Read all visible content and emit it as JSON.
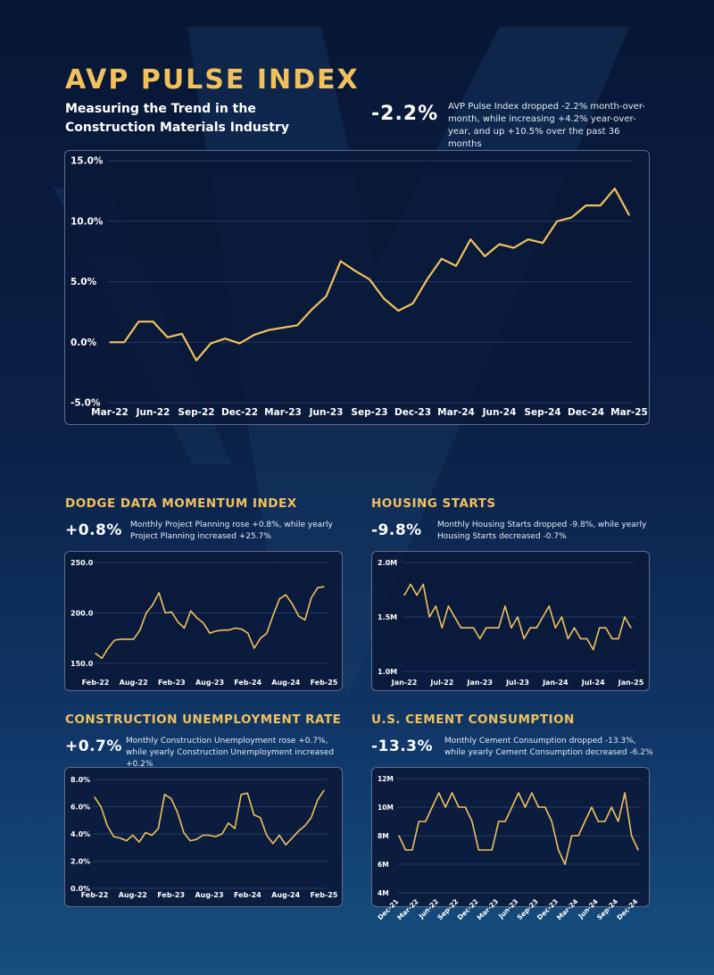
{
  "header": {
    "title": "AVP PULSE INDEX",
    "subtitle": "Measuring the Trend in the Construction Materials Industry",
    "stat": "-2.2%",
    "description": "AVP Pulse Index dropped -2.2% month-over-month, while increasing +4.2% year-over-year, and up +10.5% over the past 36 months"
  },
  "colors": {
    "line": "#f2c15c",
    "accent": "#f2c15c",
    "panel": "#0a1838",
    "text": "#ffffff"
  },
  "sections": {
    "dodge": {
      "title": "DODGE DATA MOMENTUM INDEX",
      "stat": "+0.8%",
      "description": "Monthly Project Planning rose +0.8%, while yearly Project Planning increased +25.7%"
    },
    "housing": {
      "title": "HOUSING STARTS",
      "stat": "-9.8%",
      "description": "Monthly Housing Starts dropped -9.8%, while yearly Housing Starts decreased -0.7%"
    },
    "unemployment": {
      "title": "CONSTRUCTION UNEMPLOYMENT RATE",
      "stat": "+0.7%",
      "description": "Monthly Construction Unemployment rose +0.7%, while yearly Construction Unemployment increased +0.2%"
    },
    "cement": {
      "title": "U.S. CEMENT CONSUMPTION",
      "stat": "-13.3%",
      "description": "Monthly Cement Consumption dropped -13.3%, while yearly Cement Consumption decreased -6.2%"
    }
  },
  "chart_data": [
    {
      "id": "pulse",
      "type": "line",
      "ylim": [
        -5,
        15
      ],
      "yticks": [
        15,
        10,
        5,
        0,
        -5
      ],
      "ytick_labels": [
        "15.0%",
        "10.0%",
        "5.0%",
        "0.0%",
        "-5.0%"
      ],
      "xtick_labels": [
        "Mar-22",
        "Jun-22",
        "Sep-22",
        "Dec-22",
        "Mar-23",
        "Jun-23",
        "Sep-23",
        "Dec-23",
        "Mar-24",
        "Jun-24",
        "Sep-24",
        "Dec-24",
        "Mar-25"
      ],
      "xtick_index": [
        0,
        3,
        6,
        9,
        12,
        15,
        18,
        21,
        24,
        27,
        30,
        33,
        36
      ],
      "grid": true,
      "series": [
        {
          "values": [
            0,
            0,
            1.7,
            1.7,
            0.4,
            0.7,
            -1.5,
            -0.1,
            0.3,
            -0.1,
            0.6,
            1.0,
            1.2,
            1.4,
            2.7,
            3.8,
            6.7,
            5.9,
            5.2,
            3.6,
            2.6,
            3.2,
            5.2,
            6.9,
            6.3,
            8.5,
            7.1,
            8.1,
            7.8,
            8.5,
            8.2,
            10.0,
            10.3,
            11.3,
            11.3,
            12.7,
            10.5
          ]
        }
      ]
    },
    {
      "id": "dodge",
      "type": "line",
      "ylim": [
        150,
        250
      ],
      "yticks": [
        250,
        200,
        150
      ],
      "ytick_labels": [
        "250.0",
        "200.0",
        "150.0"
      ],
      "xtick_labels": [
        "Feb-22",
        "Aug-22",
        "Feb-23",
        "Aug-23",
        "Feb-24",
        "Aug-24",
        "Feb-25"
      ],
      "xtick_index": [
        0,
        6,
        12,
        18,
        24,
        30,
        36
      ],
      "grid": true,
      "series": [
        {
          "values": [
            160,
            155,
            165,
            173,
            174,
            174,
            174,
            183,
            200,
            208,
            220,
            200,
            201,
            191,
            185,
            202,
            195,
            190,
            180,
            182,
            183,
            183,
            185,
            184,
            180,
            165,
            175,
            180,
            198,
            214,
            218,
            209,
            197,
            193,
            215,
            225,
            226
          ]
        }
      ]
    },
    {
      "id": "housing",
      "type": "line",
      "ylim": [
        1.0,
        2.0
      ],
      "yticks": [
        2.0,
        1.5,
        1.0
      ],
      "ytick_labels": [
        "2.0M",
        "1.5M",
        "1.0M"
      ],
      "xtick_labels": [
        "Jan-22",
        "Jul-22",
        "Jan-23",
        "Jul-23",
        "Jan-24",
        "Jul-24",
        "Jan-25"
      ],
      "xtick_index": [
        0,
        6,
        12,
        18,
        24,
        30,
        36
      ],
      "grid": true,
      "series": [
        {
          "values": [
            1.7,
            1.8,
            1.7,
            1.8,
            1.5,
            1.6,
            1.4,
            1.6,
            1.5,
            1.4,
            1.4,
            1.4,
            1.3,
            1.4,
            1.4,
            1.4,
            1.6,
            1.4,
            1.5,
            1.3,
            1.4,
            1.4,
            1.5,
            1.6,
            1.4,
            1.5,
            1.3,
            1.4,
            1.3,
            1.3,
            1.2,
            1.4,
            1.4,
            1.3,
            1.3,
            1.5,
            1.4
          ]
        }
      ]
    },
    {
      "id": "unemployment",
      "type": "line",
      "ylim": [
        0,
        8
      ],
      "yticks": [
        8,
        6,
        4,
        2,
        0
      ],
      "ytick_labels": [
        "8.0%",
        "6.0%",
        "4.0%",
        "2.0%",
        "0.0%"
      ],
      "xtick_labels": [
        "Feb-22",
        "Aug-22",
        "Feb-23",
        "Aug-23",
        "Feb-24",
        "Aug-24",
        "Feb-25"
      ],
      "xtick_index": [
        0,
        6,
        12,
        18,
        24,
        30,
        36
      ],
      "grid": true,
      "series": [
        {
          "values": [
            6.7,
            6.0,
            4.6,
            3.8,
            3.7,
            3.5,
            3.9,
            3.4,
            4.1,
            3.9,
            4.4,
            6.9,
            6.6,
            5.6,
            4.1,
            3.5,
            3.6,
            3.9,
            3.9,
            3.8,
            4.0,
            4.8,
            4.4,
            6.9,
            7.0,
            5.4,
            5.2,
            3.9,
            3.3,
            3.9,
            3.2,
            3.7,
            4.2,
            4.6,
            5.2,
            6.5,
            7.2
          ]
        }
      ]
    },
    {
      "id": "cement",
      "type": "line",
      "ylim": [
        4,
        12
      ],
      "yticks": [
        12,
        10,
        8,
        6,
        4
      ],
      "ytick_labels": [
        "12M",
        "10M",
        "8M",
        "6M",
        "4M"
      ],
      "xtick_labels": [
        "Dec-21",
        "Mar-22",
        "Jun-22",
        "Sep-22",
        "Dec-22",
        "Mar-23",
        "Jun-23",
        "Sep-23",
        "Dec-23",
        "Mar-24",
        "Jun-24",
        "Sep-24",
        "Dec-24"
      ],
      "xtick_index": [
        0,
        3,
        6,
        9,
        12,
        15,
        18,
        21,
        24,
        27,
        30,
        33,
        36
      ],
      "grid": true,
      "series": [
        {
          "values": [
            8,
            7,
            7,
            9,
            9,
            10,
            11,
            10,
            11,
            10,
            10,
            9,
            7,
            7,
            7,
            9,
            9,
            10,
            11,
            10,
            11,
            10,
            10,
            9,
            7,
            6,
            8,
            8,
            9,
            10,
            9,
            9,
            10,
            9,
            11,
            8,
            7
          ]
        }
      ]
    }
  ]
}
